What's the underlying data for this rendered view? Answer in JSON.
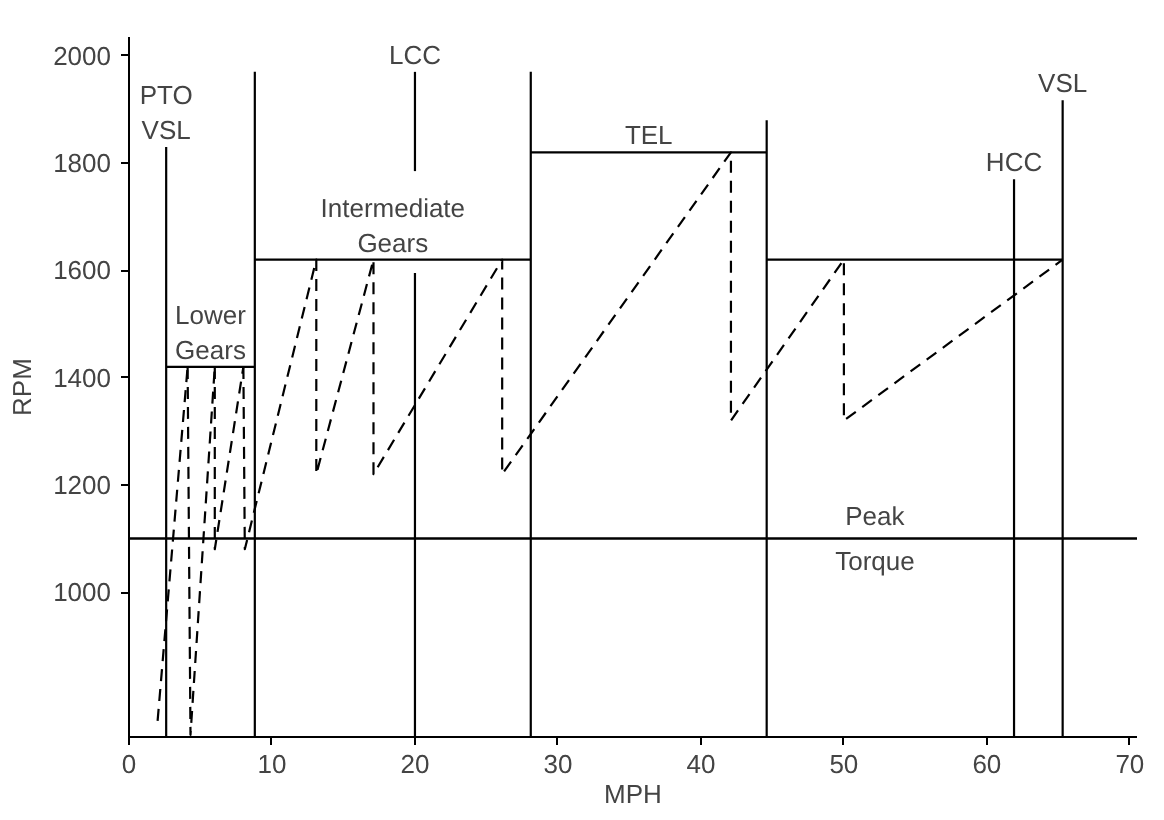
{
  "chart_data": {
    "type": "line",
    "xlabel": "MPH",
    "ylabel": "RPM",
    "xlim": [
      0,
      70.5
    ],
    "ylim": [
      730,
      2035
    ],
    "xticks": [
      0,
      10,
      20,
      30,
      40,
      50,
      60,
      70
    ],
    "yticks": [
      1000,
      1200,
      1400,
      1600,
      1800,
      2000
    ],
    "grid": false,
    "marker": "none",
    "line_style": "solid",
    "series": [
      {
        "color": "#000000",
        "line_style": "dashed",
        "x": [
          2.0,
          4.1
        ],
        "values": [
          760,
          1420
        ]
      },
      {
        "color": "#000000",
        "line_style": "dashed",
        "x": [
          4.1,
          4.3,
          6.0
        ],
        "values": [
          1420,
          734,
          1420
        ]
      },
      {
        "color": "#000000",
        "line_style": "dashed",
        "x": [
          6.0,
          6.0,
          8.0
        ],
        "values": [
          1420,
          1080,
          1420
        ]
      },
      {
        "color": "#000000",
        "line_style": "dashed",
        "x": [
          8.0,
          8.1,
          13.1,
          13.1,
          17.1,
          17.1,
          26.1,
          26.1,
          42.1,
          42.1,
          50.0,
          50.0,
          65.3
        ],
        "values": [
          1420,
          1080,
          1620,
          1220,
          1620,
          1220,
          1620,
          1220,
          1820,
          1320,
          1620,
          1320,
          1620
        ]
      },
      {
        "color": "#000000",
        "name": "PTO\nVSL",
        "x": [
          2.6,
          2.6
        ],
        "values": [
          730,
          1830
        ]
      },
      {
        "color": "#000000",
        "name": "Lower\nGears",
        "x": [
          2.6,
          8.8
        ],
        "values": [
          1420,
          1420
        ]
      },
      {
        "color": "#000000",
        "x": [
          8.8,
          8.8
        ],
        "values": [
          730,
          1970
        ]
      },
      {
        "color": "#000000",
        "name": "Intermediate\nGears",
        "x": [
          8.8,
          28.1
        ],
        "values": [
          1620,
          1620
        ]
      },
      {
        "color": "#000000",
        "x": [
          20,
          20
        ],
        "values": [
          730,
          1595
        ]
      },
      {
        "color": "#000000",
        "name": "LCC",
        "x": [
          20,
          20
        ],
        "values": [
          1785,
          1970
        ]
      },
      {
        "color": "#000000",
        "x": [
          28.1,
          28.1
        ],
        "values": [
          730,
          1970
        ]
      },
      {
        "color": "#000000",
        "name": "TEL",
        "x": [
          28.1,
          44.6
        ],
        "values": [
          1820,
          1820
        ]
      },
      {
        "color": "#000000",
        "x": [
          44.6,
          44.6
        ],
        "values": [
          730,
          1880
        ]
      },
      {
        "color": "#000000",
        "x": [
          44.6,
          65.3
        ],
        "values": [
          1620,
          1620
        ]
      },
      {
        "color": "#000000",
        "name": "HCC",
        "x": [
          61.9,
          61.9
        ],
        "values": [
          730,
          1770
        ]
      },
      {
        "color": "#000000",
        "name": "VSL",
        "x": [
          65.3,
          65.3
        ],
        "values": [
          730,
          1917
        ]
      }
    ],
    "ref_lines": [
      {
        "axis": "y",
        "value": 1100,
        "color": "#000000",
        "label": "Peak\nTorque"
      }
    ]
  }
}
